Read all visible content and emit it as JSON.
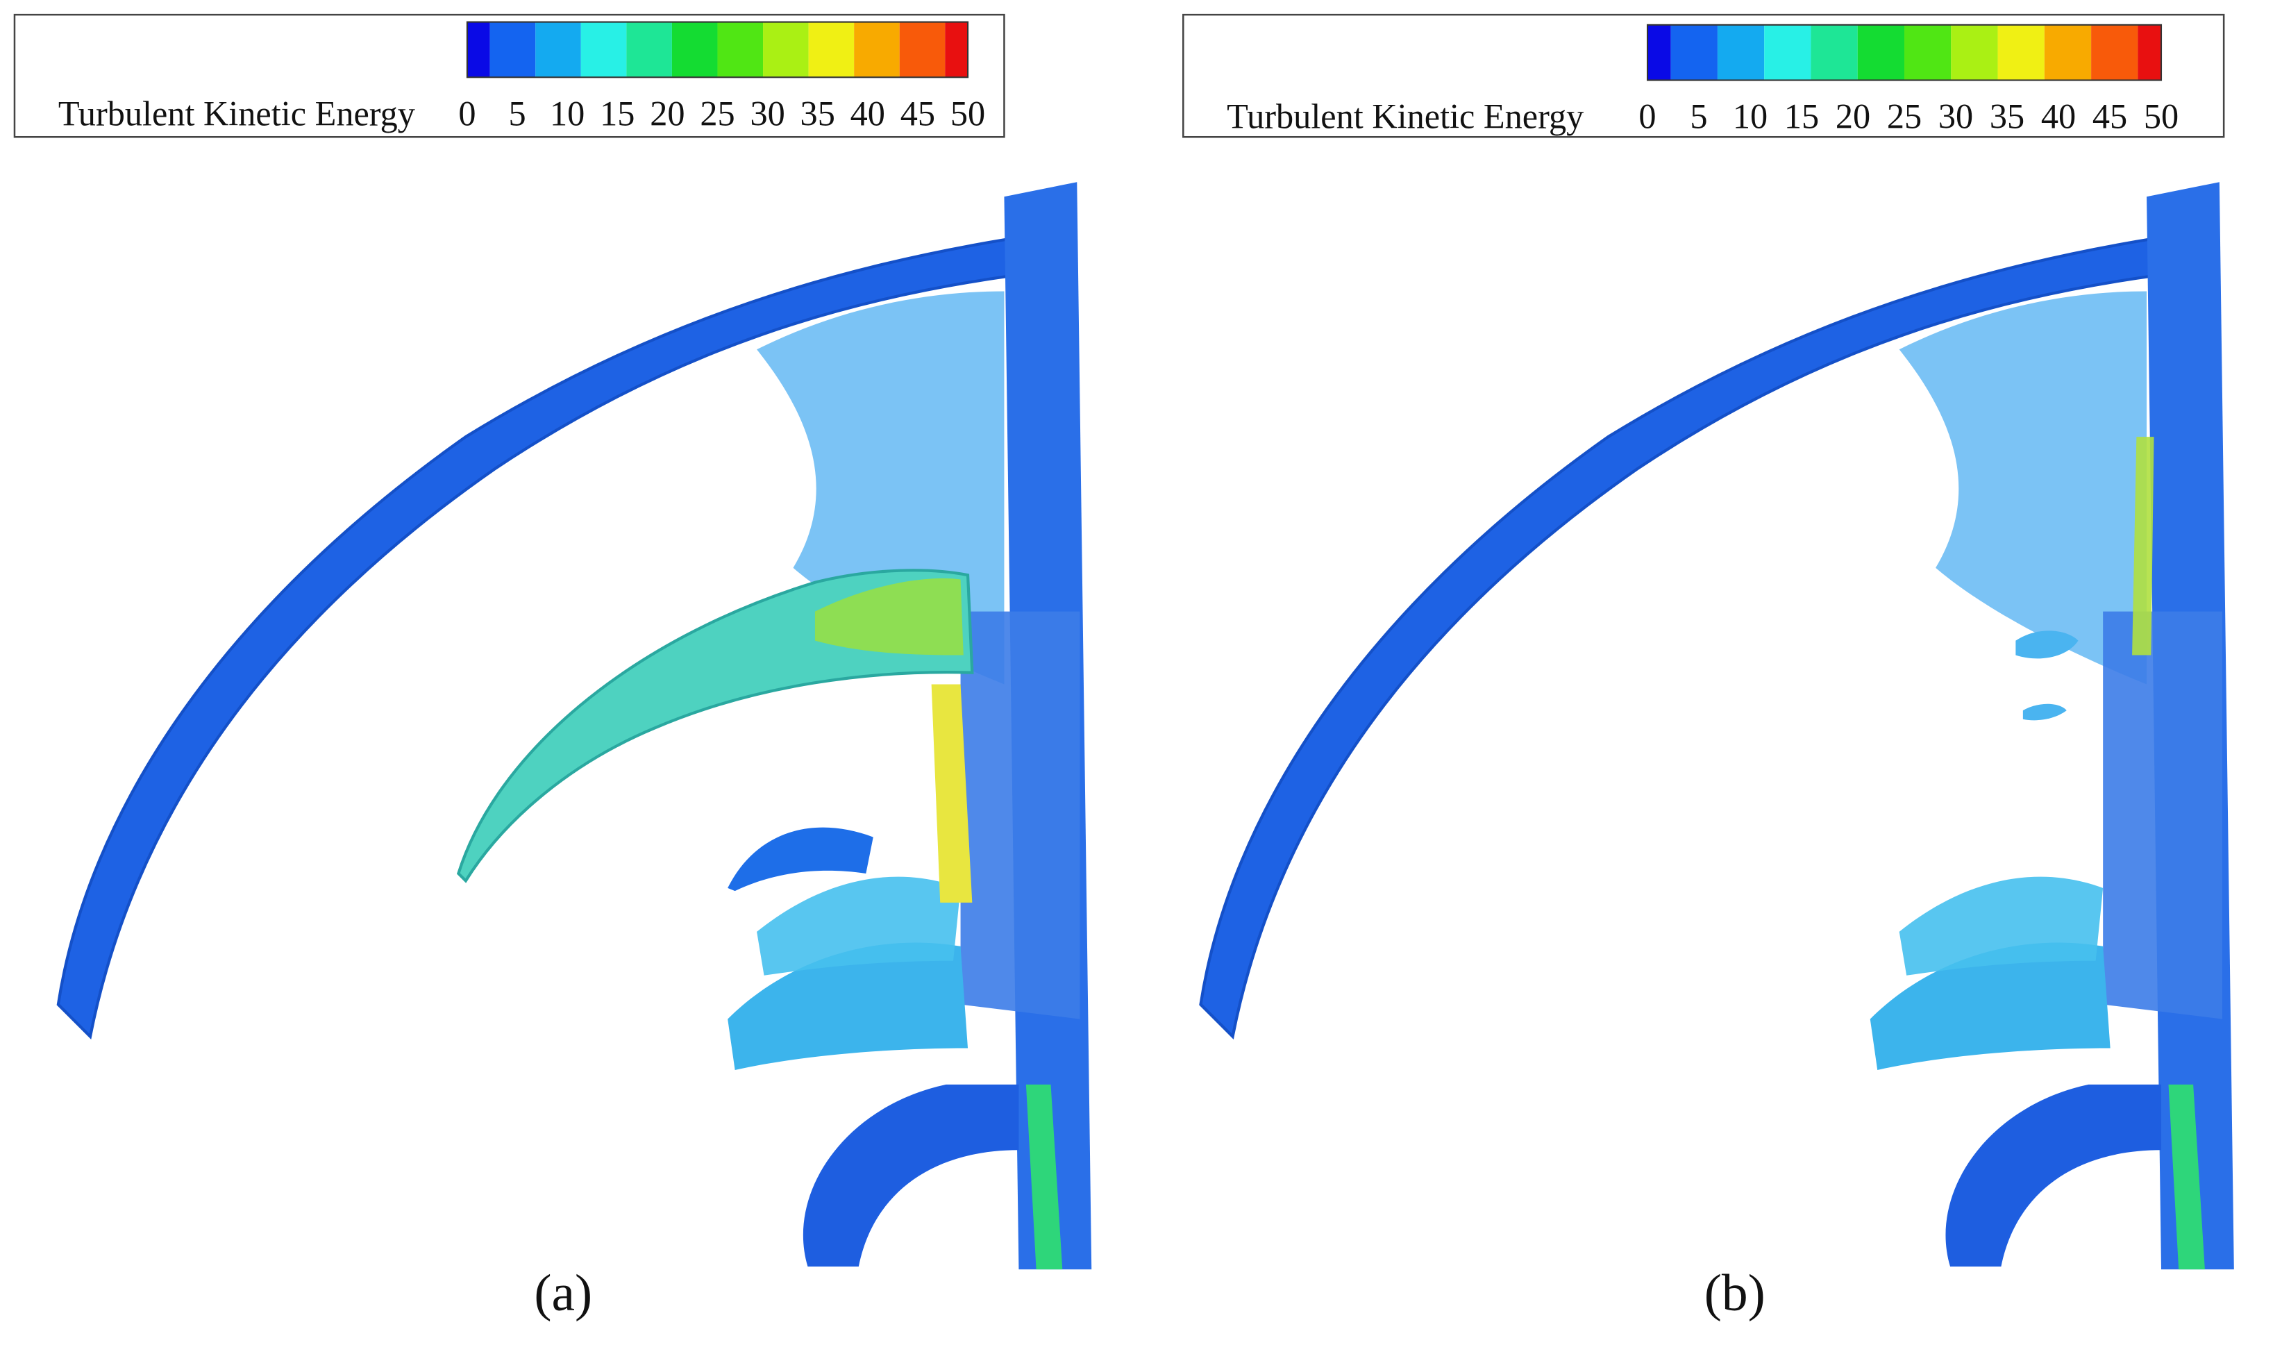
{
  "panels": [
    {
      "caption": "(a)",
      "legend": {
        "title": "Turbulent Kinetic Energy",
        "ticks": [
          0,
          5,
          10,
          15,
          20,
          25,
          30,
          35,
          40,
          45,
          50
        ],
        "colors": [
          "#0a0ae6",
          "#1464f0",
          "#14aaf0",
          "#28f0e6",
          "#1ee696",
          "#14dc32",
          "#50e614",
          "#aaf014",
          "#f0f014",
          "#f8aa00",
          "#f85a0a",
          "#e81010"
        ]
      }
    },
    {
      "caption": "(b)",
      "legend": {
        "title": "Turbulent Kinetic Energy",
        "ticks": [
          0,
          5,
          10,
          15,
          20,
          25,
          30,
          35,
          40,
          45,
          50
        ],
        "colors": [
          "#0a0ae6",
          "#1464f0",
          "#14aaf0",
          "#28f0e6",
          "#1ee696",
          "#14dc32",
          "#50e614",
          "#aaf014",
          "#f0f014",
          "#f8aa00",
          "#f85a0a",
          "#e81010"
        ]
      }
    }
  ]
}
